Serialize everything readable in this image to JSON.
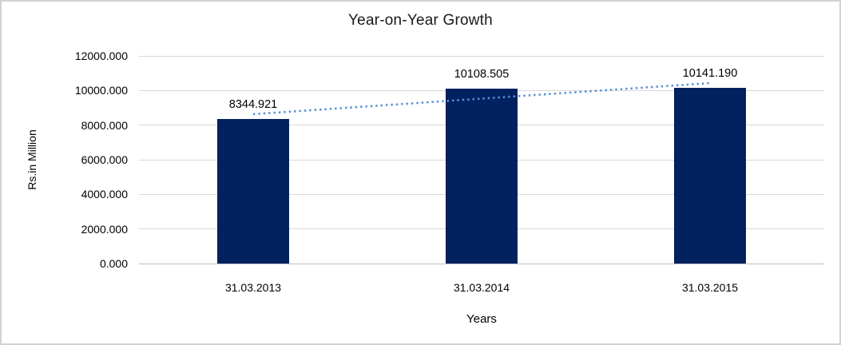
{
  "chart_data": {
    "type": "bar",
    "title": "Year-on-Year Growth",
    "xlabel": "Years",
    "ylabel": "Rs.in Million",
    "categories": [
      "31.03.2013",
      "31.03.2014",
      "31.03.2015"
    ],
    "values": [
      8344.921,
      10108.505,
      10141.19
    ],
    "data_labels": [
      "8344.921",
      "10108.505",
      "10141.190"
    ],
    "ylim": [
      0,
      12000
    ],
    "ytick_step": 2000,
    "ytick_labels": [
      "0.000",
      "2000.000",
      "4000.000",
      "6000.000",
      "8000.000",
      "10000.000",
      "12000.000"
    ],
    "grid": true,
    "legend": "none",
    "trendline": {
      "type": "linear",
      "style": "dotted"
    },
    "colors": {
      "bar": "#02215f",
      "trendline": "#5b8fd6",
      "gridline": "#d9d9d9",
      "axis_line": "#bfbfbf",
      "text": "#000000",
      "border": "#d3d3d3",
      "background": "#ffffff"
    }
  }
}
